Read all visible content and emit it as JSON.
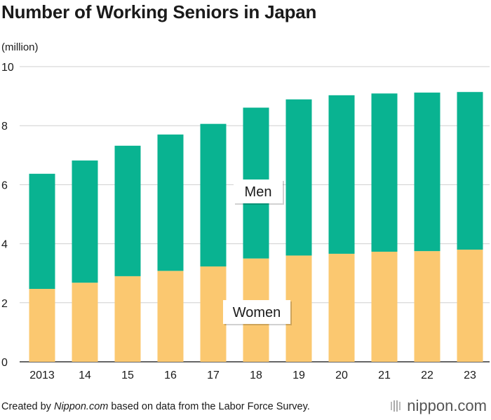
{
  "chart_data": {
    "type": "bar",
    "stacked": true,
    "title": "Number of Working Seniors in Japan",
    "ylabel": "(million)",
    "xlabel": "",
    "ylim": [
      0,
      10
    ],
    "yticks": [
      0,
      2,
      4,
      6,
      8,
      10
    ],
    "grid": true,
    "categories": [
      "2013",
      "14",
      "15",
      "16",
      "17",
      "18",
      "19",
      "20",
      "21",
      "22",
      "23"
    ],
    "series": [
      {
        "name": "Women",
        "color": "#fbc870",
        "values": [
          2.47,
          2.68,
          2.9,
          3.08,
          3.23,
          3.5,
          3.6,
          3.66,
          3.73,
          3.75,
          3.8
        ]
      },
      {
        "name": "Men",
        "color": "#09b391",
        "values": [
          3.9,
          4.14,
          4.42,
          4.62,
          4.83,
          5.11,
          5.29,
          5.37,
          5.36,
          5.37,
          5.34
        ]
      }
    ],
    "annotations": [
      "Men",
      "Women"
    ]
  },
  "footer": {
    "source_prefix": "Created by ",
    "source_site": "Nippon.com",
    "source_suffix": " based on data from the Labor Force Survey.",
    "logo_text": "nippon",
    "logo_suffix": ".com"
  }
}
